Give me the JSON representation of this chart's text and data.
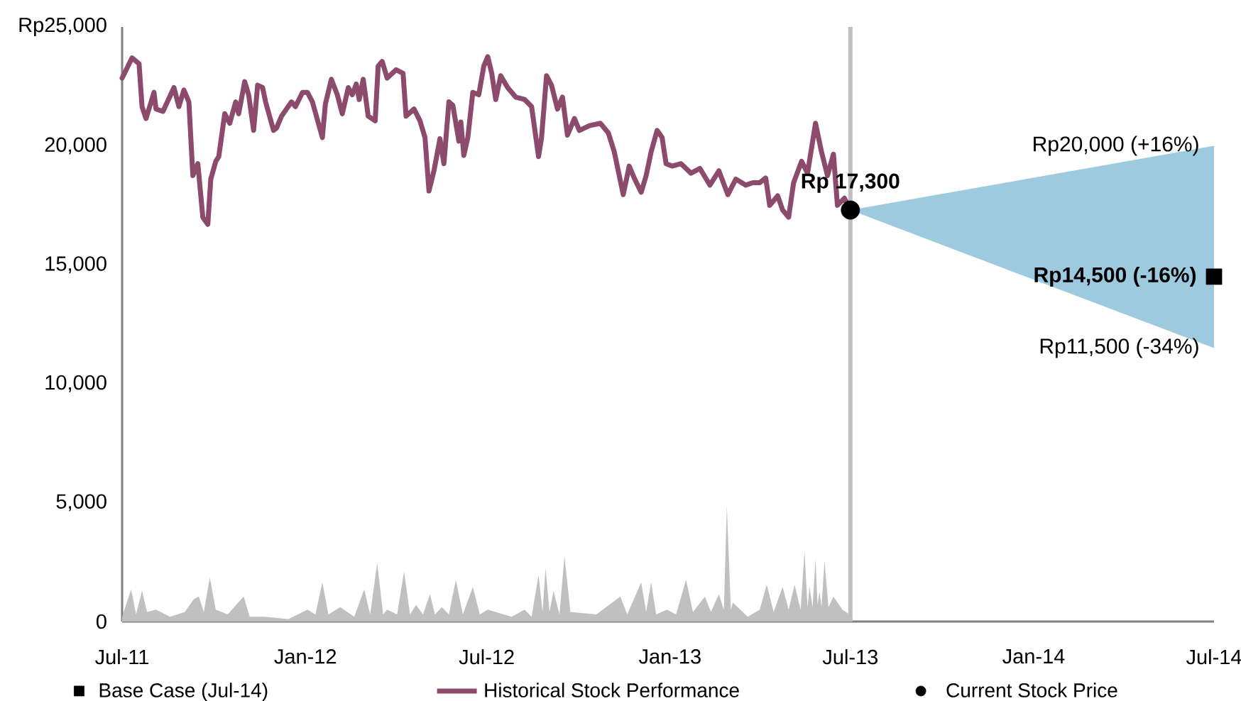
{
  "chart_data": {
    "type": "line",
    "xlim": [
      "2011-07-01",
      "2014-07-01"
    ],
    "xticks": [
      {
        "value": "2011-07-01",
        "label": "Jul-11"
      },
      {
        "value": "2012-01-01",
        "label": "Jan-12"
      },
      {
        "value": "2012-07-01",
        "label": "Jul-12"
      },
      {
        "value": "2013-01-01",
        "label": "Jan-13"
      },
      {
        "value": "2013-07-01",
        "label": "Jul-13"
      },
      {
        "value": "2014-01-01",
        "label": "Jan-14"
      },
      {
        "value": "2014-07-01",
        "label": "Jul-14"
      }
    ],
    "ylim": [
      0,
      25000
    ],
    "yticks": [
      0,
      {
        "value": 5000,
        "label": "5,000"
      },
      {
        "value": 10000,
        "label": "10,000"
      },
      {
        "value": 15000,
        "label": "15,000"
      },
      {
        "value": 20000,
        "label": "20,000"
      },
      {
        "value": 25000,
        "label": "Rp25,000"
      }
    ],
    "legend": "bottom",
    "ref_lines": [
      {
        "axis": "x",
        "value": "2013-07-01",
        "color": "#bfbfbf"
      }
    ],
    "annotations": [
      {
        "text": "Rp20,000 (+16%)",
        "x": "2014-07-01",
        "y": 20000
      },
      {
        "text": "Rp11,500 (-34%)",
        "x": "2014-07-01",
        "y": 11500
      }
    ],
    "series": [
      {
        "type": "area",
        "color": "#c0c0c0",
        "x": [
          "2011-07-01",
          "2011-07-10",
          "2011-07-15",
          "2011-07-21",
          "2011-07-26",
          "2011-08-04",
          "2011-08-18",
          "2011-09-02",
          "2011-09-11",
          "2011-09-16",
          "2011-09-21",
          "2011-09-27",
          "2011-10-03",
          "2011-10-15",
          "2011-10-31",
          "2011-11-06",
          "2011-11-21",
          "2011-12-15",
          "2012-01-03",
          "2012-01-11",
          "2012-01-18",
          "2012-01-24",
          "2012-02-05",
          "2012-02-19",
          "2012-02-29",
          "2012-03-06",
          "2012-03-13",
          "2012-03-19",
          "2012-03-23",
          "2012-04-02",
          "2012-04-09",
          "2012-04-15",
          "2012-04-21",
          "2012-04-28",
          "2012-05-05",
          "2012-05-10",
          "2012-05-17",
          "2012-05-24",
          "2012-05-31",
          "2012-06-07",
          "2012-06-17",
          "2012-06-24",
          "2012-07-02",
          "2012-07-26",
          "2012-08-08",
          "2012-08-15",
          "2012-08-22",
          "2012-08-26",
          "2012-08-29",
          "2012-09-02",
          "2012-09-06",
          "2012-09-12",
          "2012-09-17",
          "2012-09-23",
          "2012-10-19",
          "2012-11-12",
          "2012-11-19",
          "2012-12-03",
          "2012-12-08",
          "2012-12-13",
          "2012-12-18",
          "2012-12-29",
          "2013-01-07",
          "2013-01-17",
          "2013-01-24",
          "2013-02-05",
          "2013-02-11",
          "2013-02-19",
          "2013-02-24",
          "2013-02-27",
          "2013-03-03",
          "2013-03-05",
          "2013-03-20",
          "2013-04-01",
          "2013-04-08",
          "2013-04-15",
          "2013-04-24",
          "2013-04-30",
          "2013-05-06",
          "2013-05-12",
          "2013-05-16",
          "2013-05-19",
          "2013-05-21",
          "2013-05-24",
          "2013-05-27",
          "2013-05-29",
          "2013-05-31",
          "2013-06-02",
          "2013-06-05",
          "2013-06-09",
          "2013-06-14",
          "2013-06-23",
          "2013-06-30"
        ],
        "values": [
          200,
          1350,
          300,
          1300,
          400,
          500,
          200,
          400,
          950,
          1050,
          400,
          1850,
          500,
          300,
          1050,
          200,
          200,
          100,
          500,
          300,
          1650,
          300,
          600,
          200,
          1350,
          300,
          2450,
          300,
          500,
          300,
          2100,
          300,
          700,
          300,
          1150,
          300,
          600,
          300,
          1750,
          300,
          1450,
          300,
          500,
          200,
          500,
          200,
          1950,
          400,
          2250,
          400,
          1300,
          300,
          2750,
          400,
          300,
          1050,
          300,
          1650,
          400,
          1650,
          300,
          500,
          300,
          1750,
          400,
          1050,
          400,
          1150,
          500,
          4850,
          500,
          800,
          200,
          500,
          1550,
          400,
          1450,
          500,
          1550,
          500,
          2950,
          600,
          1450,
          600,
          2650,
          700,
          1250,
          600,
          2550,
          600,
          1050,
          500,
          300
        ]
      },
      {
        "type": "area",
        "color": "#9ecae0",
        "x": [
          "2013-07-01",
          "2014-07-01"
        ],
        "values": [
          null,
          null
        ],
        "lower": [
          17300,
          11500
        ],
        "upper": [
          17300,
          20000
        ]
      },
      {
        "type": "scatter",
        "name": "Base Case (Jul-14)",
        "color": "#000000",
        "marker": "square",
        "x": [
          "2014-07-01"
        ],
        "values": [
          14500
        ],
        "value_labels": [
          "Rp14,500 (-16%)"
        ]
      },
      {
        "name": "Historical Stock Performance",
        "color": "#8c4a6c",
        "x": [
          "2011-07-01",
          "2011-07-11",
          "2011-07-18",
          "2011-07-21",
          "2011-07-25",
          "2011-08-02",
          "2011-08-04",
          "2011-08-11",
          "2011-08-22",
          "2011-08-27",
          "2011-09-01",
          "2011-09-06",
          "2011-09-10",
          "2011-09-15",
          "2011-09-20",
          "2011-09-25",
          "2011-09-28",
          "2011-10-03",
          "2011-10-06",
          "2011-10-12",
          "2011-10-17",
          "2011-10-23",
          "2011-10-26",
          "2011-11-01",
          "2011-11-05",
          "2011-11-10",
          "2011-11-14",
          "2011-11-19",
          "2011-11-22",
          "2011-11-30",
          "2011-12-03",
          "2011-12-08",
          "2011-12-18",
          "2011-12-22",
          "2011-12-29",
          "2012-01-03",
          "2012-01-08",
          "2012-01-12",
          "2012-01-18",
          "2012-01-21",
          "2012-01-27",
          "2012-02-02",
          "2012-02-07",
          "2012-02-13",
          "2012-02-17",
          "2012-02-21",
          "2012-02-24",
          "2012-02-28",
          "2012-03-04",
          "2012-03-11",
          "2012-03-14",
          "2012-03-18",
          "2012-03-23",
          "2012-04-01",
          "2012-04-08",
          "2012-04-11",
          "2012-04-19",
          "2012-04-25",
          "2012-04-30",
          "2012-05-04",
          "2012-05-09",
          "2012-05-15",
          "2012-05-19",
          "2012-05-24",
          "2012-05-28",
          "2012-06-03",
          "2012-06-05",
          "2012-06-08",
          "2012-06-12",
          "2012-06-17",
          "2012-06-23",
          "2012-06-28",
          "2012-07-02",
          "2012-07-06",
          "2012-07-10",
          "2012-07-15",
          "2012-07-22",
          "2012-07-30",
          "2012-08-08",
          "2012-08-15",
          "2012-08-22",
          "2012-08-25",
          "2012-08-30",
          "2012-09-04",
          "2012-09-10",
          "2012-09-15",
          "2012-09-20",
          "2012-09-27",
          "2012-10-02",
          "2012-10-12",
          "2012-10-23",
          "2012-10-31",
          "2012-11-06",
          "2012-11-15",
          "2012-11-21",
          "2012-11-26",
          "2012-12-03",
          "2012-12-08",
          "2012-12-13",
          "2012-12-19",
          "2012-12-24",
          "2012-12-28",
          "2013-01-03",
          "2013-01-12",
          "2013-01-22",
          "2013-01-31",
          "2013-02-10",
          "2013-02-19",
          "2013-02-28",
          "2013-03-08",
          "2013-03-18",
          "2013-03-25",
          "2013-04-01",
          "2013-04-07",
          "2013-04-11",
          "2013-04-19",
          "2013-04-24",
          "2013-04-30",
          "2013-05-05",
          "2013-05-13",
          "2013-05-19",
          "2013-05-27",
          "2013-06-02",
          "2013-06-08",
          "2013-06-14",
          "2013-06-18",
          "2013-06-25",
          "2013-06-30"
        ],
        "values": [
          22850,
          23700,
          23450,
          21650,
          21150,
          22250,
          21550,
          21450,
          22450,
          21650,
          22350,
          21850,
          18750,
          19250,
          17000,
          16700,
          18600,
          19350,
          19550,
          21350,
          20950,
          21850,
          21350,
          22700,
          22150,
          20650,
          22550,
          22450,
          21850,
          20650,
          20750,
          21250,
          21850,
          21650,
          22250,
          22250,
          21850,
          21250,
          20350,
          21750,
          22800,
          22150,
          21350,
          22450,
          22150,
          22600,
          21950,
          22800,
          21250,
          21050,
          23350,
          23550,
          22850,
          23200,
          23050,
          21250,
          21550,
          21050,
          20350,
          18100,
          18950,
          20300,
          19250,
          21850,
          21700,
          20200,
          21000,
          19600,
          20350,
          22250,
          22150,
          23350,
          23750,
          23050,
          21950,
          22950,
          22450,
          22050,
          21950,
          21650,
          19550,
          20350,
          22950,
          22550,
          21550,
          22050,
          20450,
          21150,
          20650,
          20850,
          20950,
          20550,
          19750,
          17950,
          19150,
          18650,
          18050,
          18750,
          19750,
          20650,
          20350,
          19250,
          19150,
          19250,
          18850,
          19050,
          18350,
          18950,
          17950,
          18600,
          18350,
          18450,
          18450,
          18650,
          17500,
          17900,
          17300,
          17000,
          18450,
          19350,
          18850,
          20950,
          19750,
          18750,
          19650,
          17500,
          17800,
          17400
        ]
      },
      {
        "type": "scatter",
        "name": "Current Stock Price",
        "color": "#000000",
        "marker": "circle",
        "x": [
          "2013-07-01"
        ],
        "values": [
          17300
        ],
        "value_labels": [
          "Rp 17,300"
        ]
      }
    ]
  }
}
